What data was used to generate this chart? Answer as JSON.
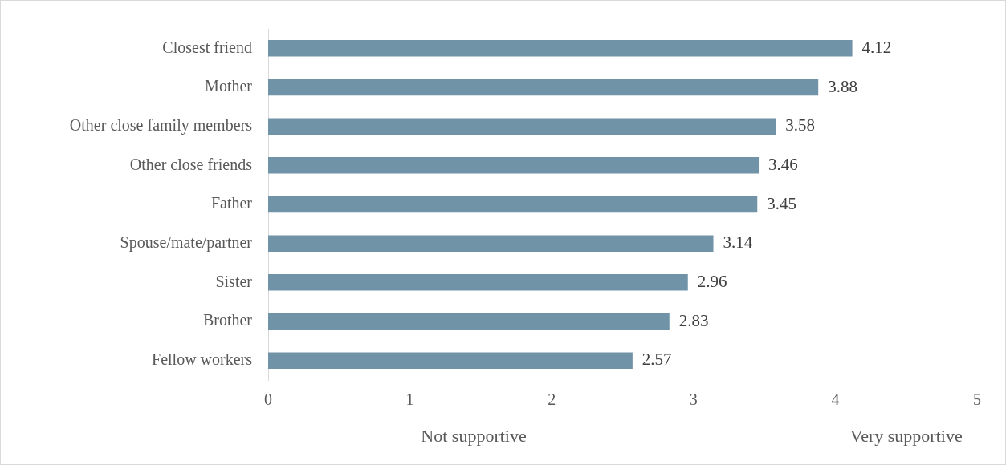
{
  "chart_data": {
    "type": "bar",
    "orientation": "horizontal",
    "categories": [
      "Closest friend",
      "Mother",
      "Other close family members",
      "Other close friends",
      "Father",
      "Spouse/mate/partner",
      "Sister",
      "Brother",
      "Fellow workers"
    ],
    "values": [
      4.12,
      3.88,
      3.58,
      3.46,
      3.45,
      3.14,
      2.96,
      2.83,
      2.57
    ],
    "color": "#7193a8",
    "xlim": [
      0,
      5
    ],
    "xticks": [
      0,
      1,
      2,
      3,
      4,
      5
    ],
    "grid": false,
    "legend": false,
    "data_labels": true,
    "annotations": [
      "Not supportive",
      "Very supportive"
    ]
  }
}
